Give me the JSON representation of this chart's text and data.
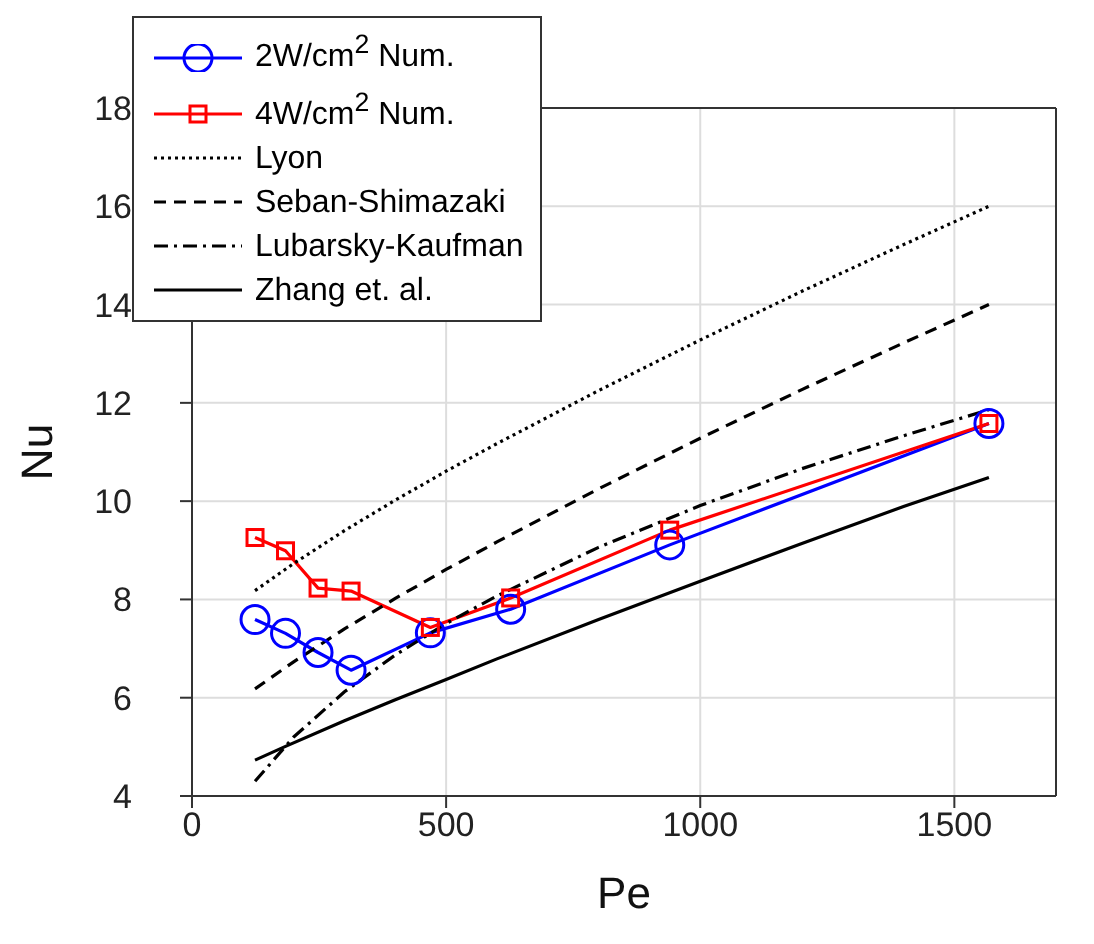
{
  "chart_data": {
    "type": "line",
    "xlabel": "Pe",
    "ylabel": "Nu",
    "xlim": [
      0,
      1700
    ],
    "xticks": [
      0,
      500,
      1000,
      1500
    ],
    "ylim": [
      4,
      18
    ],
    "yticks": [
      4,
      6,
      8,
      10,
      12,
      14,
      16,
      18
    ],
    "grid": true,
    "legend": "top left",
    "series": [
      {
        "name": "2W/cm$^{2}$ Num.",
        "color": "#0000ff",
        "marker": "circle",
        "line_style": "solid",
        "x": [
          124,
          184,
          248,
          313,
          469,
          627,
          940,
          1568
        ],
        "values": [
          7.59,
          7.31,
          6.92,
          6.56,
          7.32,
          7.8,
          9.11,
          11.58
        ]
      },
      {
        "name": "4W/cm$^{2}$ Num.",
        "color": "#ff0000",
        "marker": "square",
        "line_style": "solid",
        "x": [
          124,
          184,
          248,
          313,
          469,
          627,
          940,
          1568
        ],
        "values": [
          9.26,
          8.99,
          8.23,
          8.17,
          7.43,
          8.03,
          9.41,
          11.58
        ]
      },
      {
        "name": "Lyon",
        "color": "#000000",
        "marker": "none",
        "line_style": "dotted",
        "x": [
          124,
          200,
          300,
          400,
          500,
          600,
          800,
          1000,
          1200,
          1400,
          1568
        ],
        "values": [
          8.18,
          8.73,
          9.4,
          10.02,
          10.61,
          11.17,
          12.25,
          13.28,
          14.27,
          15.22,
          16.0
        ]
      },
      {
        "name": "Seban-Shimazaki",
        "color": "#000000",
        "marker": "none",
        "line_style": "dashed",
        "x": [
          124,
          200,
          300,
          400,
          500,
          600,
          800,
          1000,
          1200,
          1400,
          1568
        ],
        "values": [
          6.18,
          6.73,
          7.4,
          8.02,
          8.61,
          9.17,
          10.25,
          11.28,
          12.27,
          13.22,
          14.0
        ]
      },
      {
        "name": "Lubarsky-Kaufman",
        "color": "#000000",
        "marker": "none",
        "line_style": "dashdot",
        "x": [
          124,
          200,
          300,
          400,
          500,
          600,
          800,
          1000,
          1200,
          1400,
          1568
        ],
        "values": [
          4.3,
          5.2,
          6.12,
          6.87,
          7.51,
          8.07,
          9.06,
          9.91,
          10.66,
          11.33,
          11.86
        ]
      },
      {
        "name": "Zhang et. al.",
        "color": "#000000",
        "marker": "none",
        "line_style": "solid",
        "x": [
          124,
          184,
          300,
          400,
          500,
          600,
          800,
          1000,
          1200,
          1400,
          1568
        ],
        "values": [
          4.73,
          5.01,
          5.53,
          5.96,
          6.37,
          6.79,
          7.59,
          8.37,
          9.14,
          9.89,
          10.48
        ]
      }
    ]
  }
}
